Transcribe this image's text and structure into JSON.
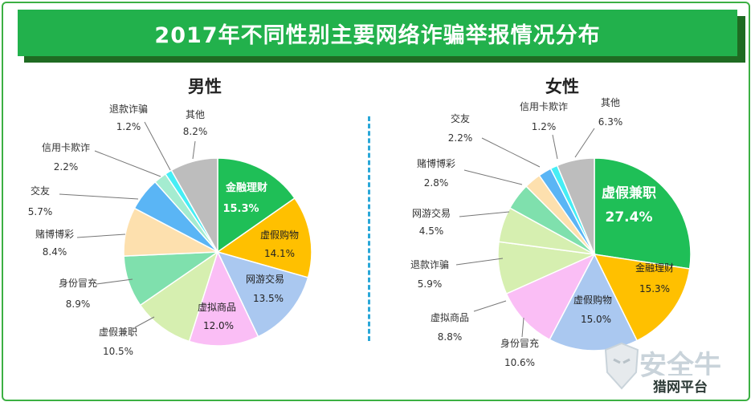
{
  "title": "2017年不同性别主要网络诈骗举报情况分布",
  "watermark": {
    "brand": "安全牛",
    "sub": "猎网平台"
  },
  "chart_data": [
    {
      "type": "pie",
      "title": "男性",
      "slices": [
        {
          "label": "金融理财",
          "value": 15.3,
          "pct": "15.3%",
          "color": "#1fbf57"
        },
        {
          "label": "虚假购物",
          "value": 14.1,
          "pct": "14.1%",
          "color": "#ffc000"
        },
        {
          "label": "网游交易",
          "value": 13.5,
          "pct": "13.5%",
          "color": "#aac8f0"
        },
        {
          "label": "虚拟商品",
          "value": 12.0,
          "pct": "12.0%",
          "color": "#fabef5"
        },
        {
          "label": "虚假兼职",
          "value": 10.5,
          "pct": "10.5%",
          "color": "#d6efb0"
        },
        {
          "label": "身份冒充",
          "value": 8.9,
          "pct": "8.9%",
          "color": "#7fe0ad"
        },
        {
          "label": "赌博博彩",
          "value": 8.4,
          "pct": "8.4%",
          "color": "#fde0ae"
        },
        {
          "label": "交友",
          "value": 5.7,
          "pct": "5.7%",
          "color": "#5ab5f5"
        },
        {
          "label": "信用卡欺诈",
          "value": 2.2,
          "pct": "2.2%",
          "color": "#a4ecd0"
        },
        {
          "label": "退款诈骗",
          "value": 1.2,
          "pct": "1.2%",
          "color": "#46eef5"
        },
        {
          "label": "其他",
          "value": 8.2,
          "pct": "8.2%",
          "color": "#bdbdbd"
        }
      ]
    },
    {
      "type": "pie",
      "title": "女性",
      "slices": [
        {
          "label": "虚假兼职",
          "value": 27.4,
          "pct": "27.4%",
          "color": "#1fbf57"
        },
        {
          "label": "金融理财",
          "value": 15.3,
          "pct": "15.3%",
          "color": "#ffc000"
        },
        {
          "label": "虚假购物",
          "value": 15.0,
          "pct": "15.0%",
          "color": "#aac8f0"
        },
        {
          "label": "身份冒充",
          "value": 10.6,
          "pct": "10.6%",
          "color": "#fabef5"
        },
        {
          "label": "虚拟商品",
          "value": 8.8,
          "pct": "8.8%",
          "color": "#d6efb0"
        },
        {
          "label": "退款诈骗",
          "value": 5.9,
          "pct": "5.9%",
          "color": "#d6efb0"
        },
        {
          "label": "网游交易",
          "value": 4.5,
          "pct": "4.5%",
          "color": "#7fe0ad"
        },
        {
          "label": "赌博博彩",
          "value": 2.8,
          "pct": "2.8%",
          "color": "#fde0ae"
        },
        {
          "label": "交友",
          "value": 2.2,
          "pct": "2.2%",
          "color": "#5ab5f5"
        },
        {
          "label": "信用卡欺诈",
          "value": 1.2,
          "pct": "1.2%",
          "color": "#46eef5"
        },
        {
          "label": "其他",
          "value": 6.3,
          "pct": "6.3%",
          "color": "#bdbdbd"
        }
      ]
    }
  ]
}
